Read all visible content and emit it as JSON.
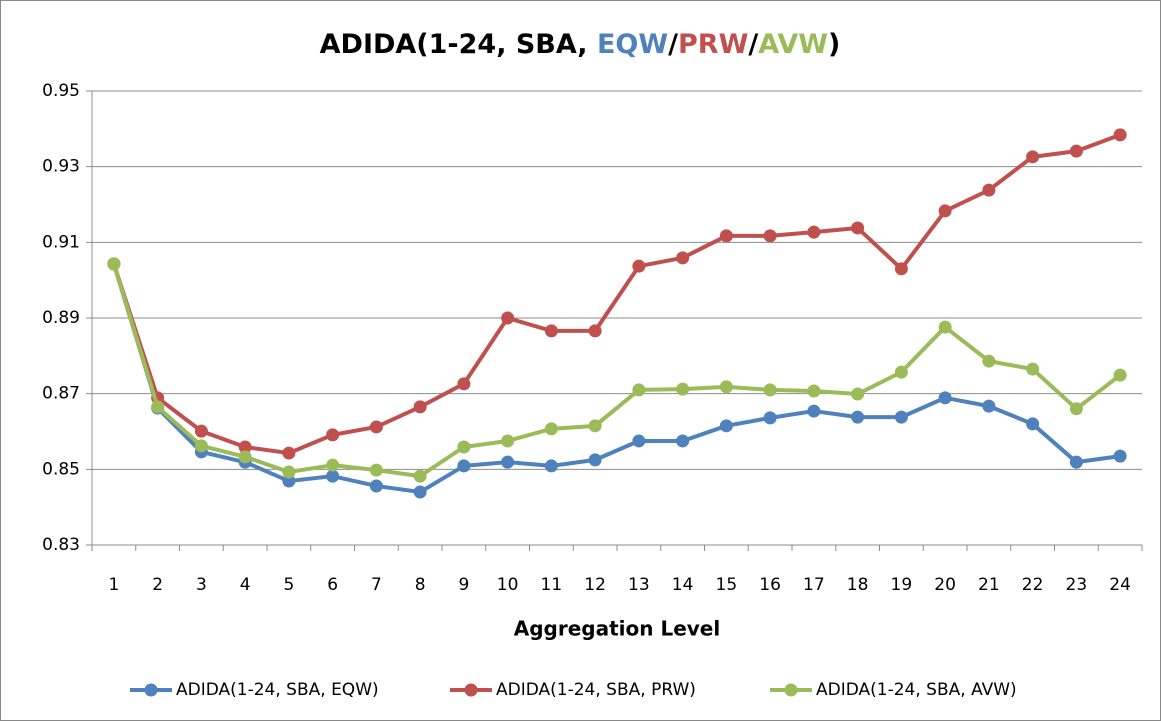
{
  "chart_data": {
    "type": "line",
    "title_parts": [
      {
        "text": "ADIDA(1-24, SBA, ",
        "color": "#000000"
      },
      {
        "text": "EQW",
        "color": "#4f81bd"
      },
      {
        "text": "/",
        "color": "#000000"
      },
      {
        "text": "PRW",
        "color": "#c0504d"
      },
      {
        "text": "/",
        "color": "#000000"
      },
      {
        "text": "AVW",
        "color": "#9bbb59"
      },
      {
        "text": ")",
        "color": "#000000"
      }
    ],
    "x_label": "Aggregation Level",
    "categories": [
      1,
      2,
      3,
      4,
      5,
      6,
      7,
      8,
      9,
      10,
      11,
      12,
      13,
      14,
      15,
      16,
      17,
      18,
      19,
      20,
      21,
      22,
      23,
      24
    ],
    "series": [
      {
        "name": "ADIDA(1-24, SBA, EQW)",
        "color": "#4f81bd",
        "values": [
          0.9043,
          0.8662,
          0.8546,
          0.8519,
          0.8469,
          0.8482,
          0.8456,
          0.844,
          0.8509,
          0.8519,
          0.8509,
          0.8525,
          0.8575,
          0.8575,
          0.8615,
          0.8636,
          0.8654,
          0.8638,
          0.8638,
          0.8689,
          0.8667,
          0.862,
          0.8519,
          0.8535
        ]
      },
      {
        "name": "ADIDA(1-24, SBA, PRW)",
        "color": "#c0504d",
        "values": [
          0.9043,
          0.8689,
          0.8601,
          0.8559,
          0.8543,
          0.8591,
          0.8612,
          0.8665,
          0.8726,
          0.89,
          0.8866,
          0.8866,
          0.9037,
          0.9059,
          0.9117,
          0.9117,
          0.9127,
          0.9138,
          0.903,
          0.9183,
          0.9238,
          0.9326,
          0.9341,
          0.9384
        ]
      },
      {
        "name": "ADIDA(1-24, SBA, AVW)",
        "color": "#9bbb59",
        "values": [
          0.9043,
          0.8665,
          0.8562,
          0.8533,
          0.8493,
          0.8511,
          0.8498,
          0.8482,
          0.8559,
          0.8575,
          0.8607,
          0.8615,
          0.871,
          0.8712,
          0.8718,
          0.871,
          0.8707,
          0.8699,
          0.8757,
          0.8876,
          0.8786,
          0.8765,
          0.866,
          0.8749
        ]
      }
    ],
    "ylim": [
      0.83,
      0.95
    ],
    "yticks": [
      0.83,
      0.85,
      0.87,
      0.89,
      0.91,
      0.93,
      0.95
    ],
    "grid": true,
    "legend": "bottom"
  }
}
